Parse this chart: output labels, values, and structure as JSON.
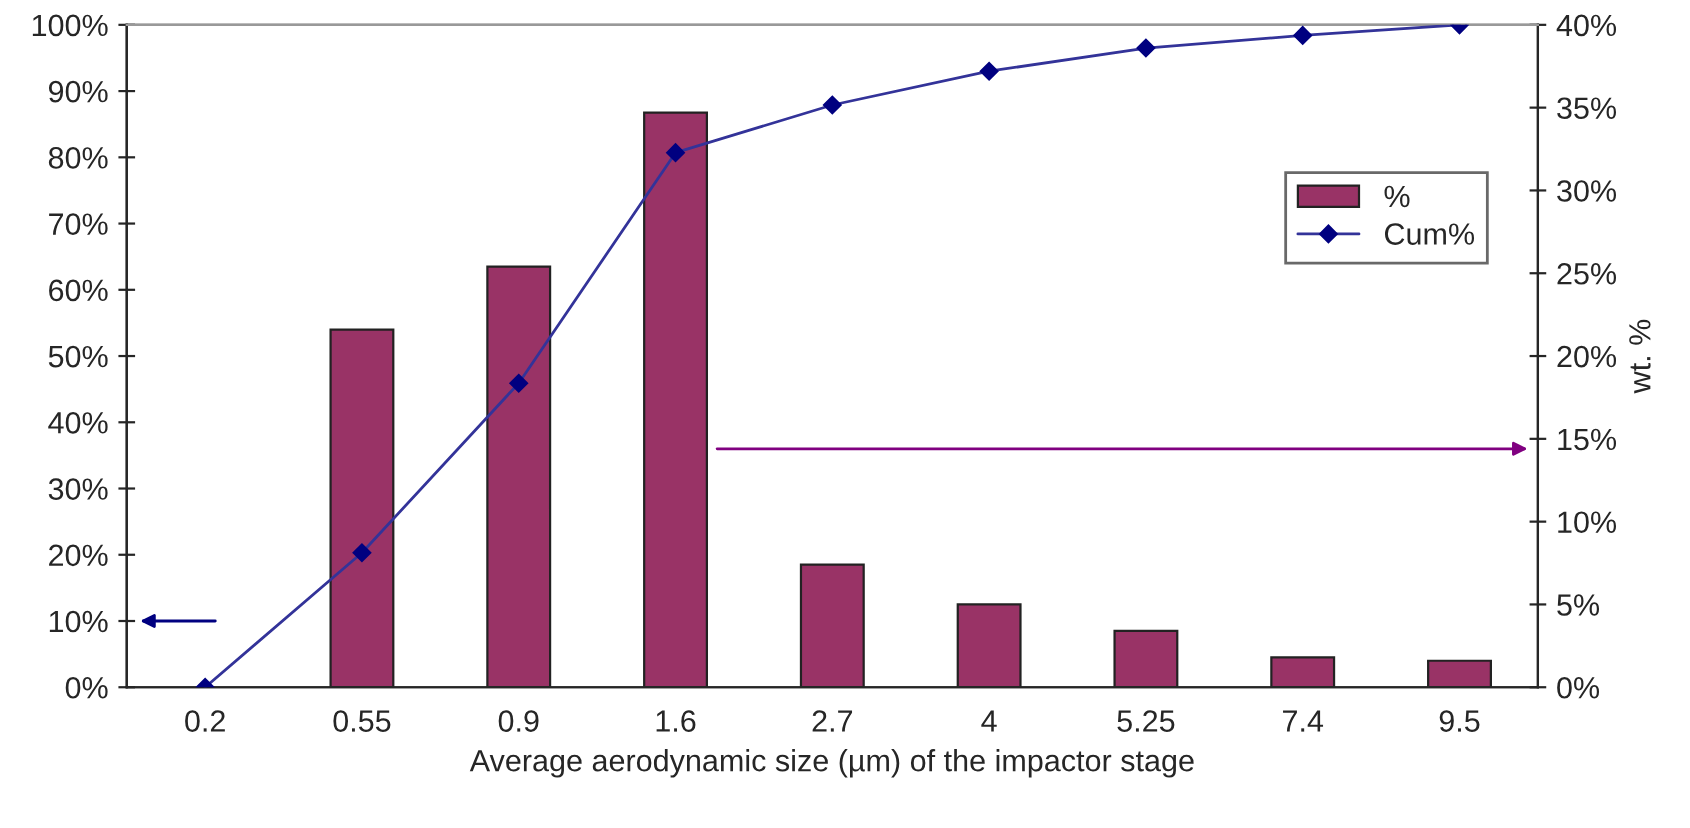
{
  "chart_data": {
    "type": "bar",
    "xlabel": "Average aerodynamic size (µm) of the impactor stage",
    "y2label": "wt. %",
    "categories": [
      "0.2",
      "0.55",
      "0.9",
      "1.6",
      "2.7",
      "4",
      "5.25",
      "7.4",
      "9.5"
    ],
    "series": [
      {
        "name": "%",
        "axis": "y2",
        "color": "#993366",
        "values": [
          null,
          21.6,
          25.4,
          34.7,
          7.4,
          5.0,
          3.4,
          1.8,
          1.6
        ]
      },
      {
        "name": "Cum%",
        "type": "line",
        "axis": "y",
        "color": "#333399",
        "marker": "diamond",
        "line_style": "solid",
        "values": [
          0,
          20.3,
          45.9,
          80.7,
          87.9,
          93.0,
          96.5,
          98.4,
          100
        ]
      }
    ],
    "ylim": [
      0,
      100
    ],
    "yticks": [
      {
        "value": 0,
        "label": "0%"
      },
      {
        "value": 10,
        "label": "10%"
      },
      {
        "value": 20,
        "label": "20%"
      },
      {
        "value": 30,
        "label": "30%"
      },
      {
        "value": 40,
        "label": "40%"
      },
      {
        "value": 50,
        "label": "50%"
      },
      {
        "value": 60,
        "label": "60%"
      },
      {
        "value": 70,
        "label": "70%"
      },
      {
        "value": 80,
        "label": "80%"
      },
      {
        "value": 90,
        "label": "90%"
      },
      {
        "value": 100,
        "label": "100%"
      }
    ],
    "y2lim": [
      0,
      40
    ],
    "y2ticks": [
      {
        "value": 0,
        "label": "0%"
      },
      {
        "value": 5,
        "label": "5%"
      },
      {
        "value": 10,
        "label": "10%"
      },
      {
        "value": 15,
        "label": "15%"
      },
      {
        "value": 20,
        "label": "20%"
      },
      {
        "value": 25,
        "label": "25%"
      },
      {
        "value": 30,
        "label": "30%"
      },
      {
        "value": 35,
        "label": "35%"
      },
      {
        "value": 40,
        "label": "40%"
      }
    ],
    "grid": false,
    "legend": "top right"
  }
}
